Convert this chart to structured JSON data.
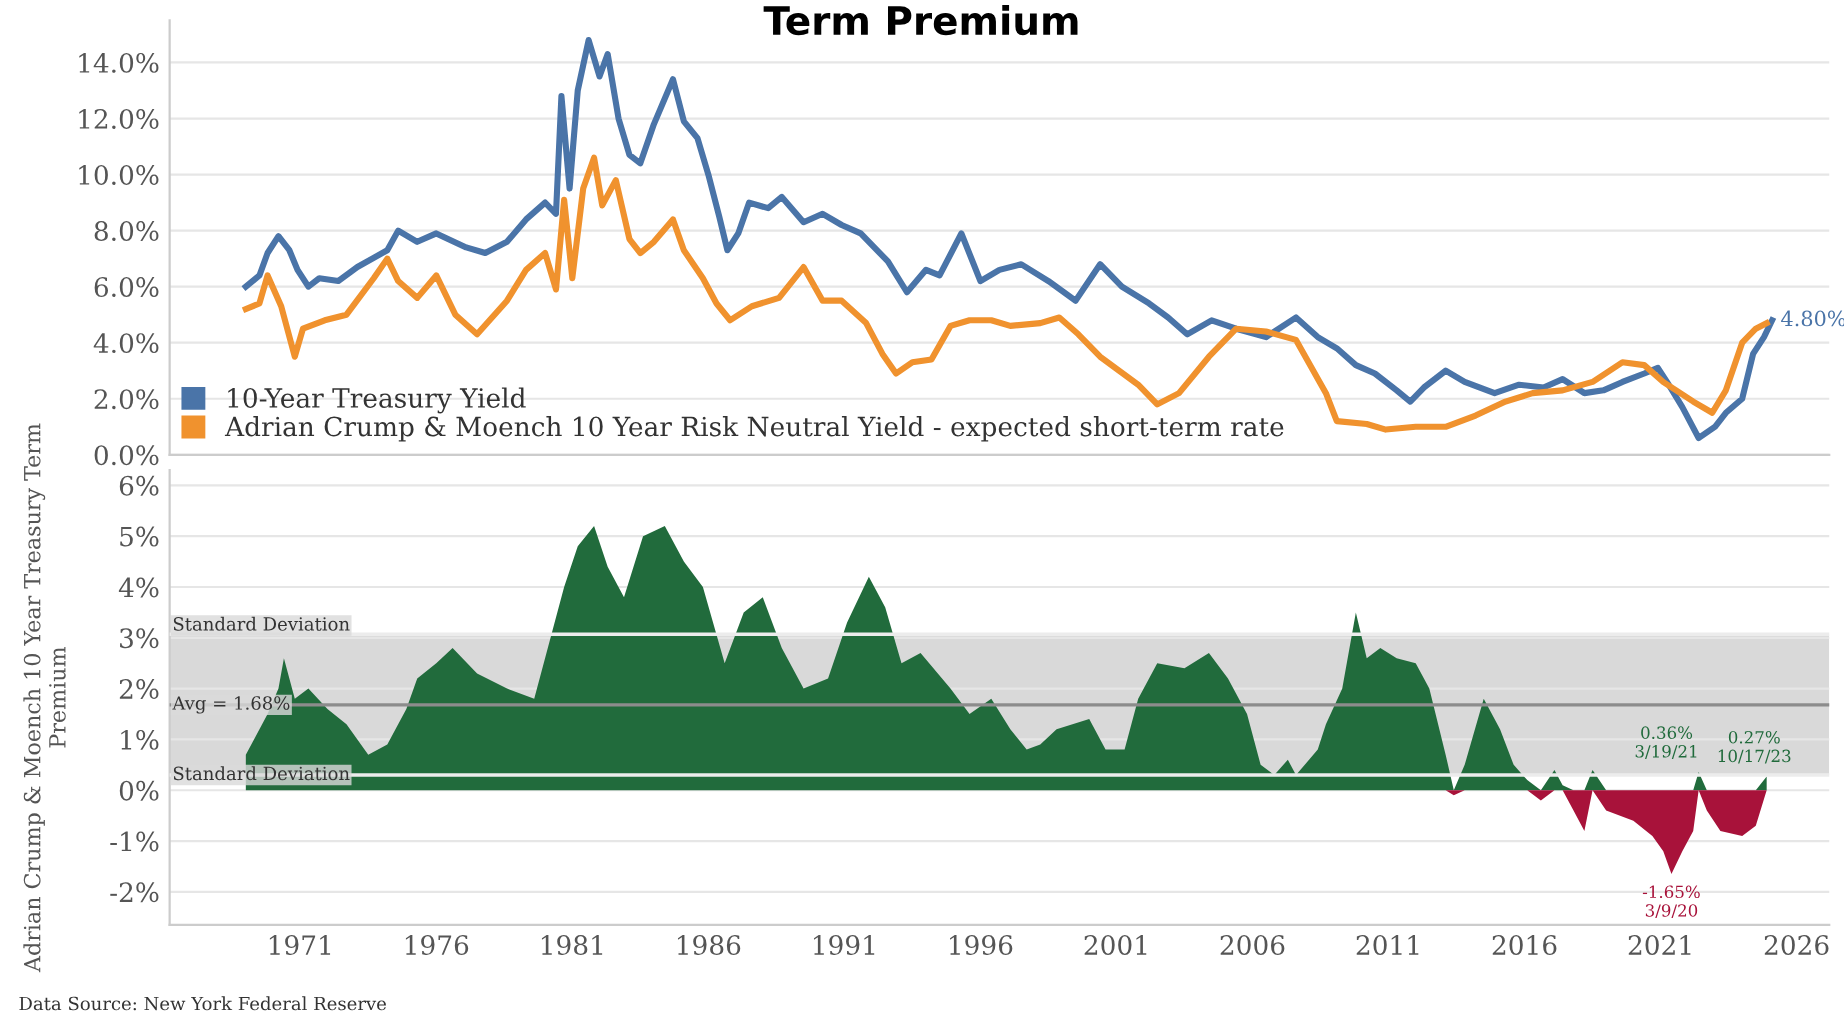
{
  "chart_data": [
    {
      "type": "line",
      "title": "Term Premium",
      "xlim": [
        1966.2,
        2027.2
      ],
      "xticks": [
        1971,
        1976,
        1981,
        1986,
        1991,
        1996,
        2001,
        2006,
        2011,
        2016,
        2021,
        2026
      ],
      "tick_labels": "y",
      "ylim": [
        0,
        15.5
      ],
      "yticks": [
        {
          "value": 0,
          "label": "0.0%"
        },
        {
          "value": 2,
          "label": "2.0%"
        },
        {
          "value": 4,
          "label": "4.0%"
        },
        {
          "value": 6,
          "label": "6.0%"
        },
        {
          "value": 8,
          "label": "8.0%"
        },
        {
          "value": 10,
          "label": "10.0%"
        },
        {
          "value": 12,
          "label": "12.0%"
        },
        {
          "value": 14,
          "label": "14.0%"
        }
      ],
      "grid": "y",
      "legend": "bottom left",
      "series": [
        {
          "name": "10-Year Treasury Yield",
          "color": "#4a74a8",
          "x": [
            1969.0,
            1969.5,
            1969.8,
            1970.2,
            1970.6,
            1970.9,
            1971.3,
            1971.7,
            1972.4,
            1973.1,
            1974.2,
            1974.6,
            1975.3,
            1976.0,
            1977.1,
            1977.8,
            1978.6,
            1979.3,
            1980.0,
            1980.4,
            1980.6,
            1980.9,
            1981.2,
            1981.6,
            1982.0,
            1982.3,
            1982.7,
            1983.1,
            1983.5,
            1984.0,
            1984.7,
            1985.1,
            1985.6,
            1986.0,
            1986.4,
            1986.7,
            1987.1,
            1987.5,
            1988.2,
            1988.7,
            1989.5,
            1990.2,
            1990.9,
            1991.6,
            1992.6,
            1993.3,
            1994.0,
            1994.5,
            1995.3,
            1996.0,
            1996.7,
            1997.5,
            1998.5,
            1999.5,
            2000.4,
            2001.2,
            2002.2,
            2002.9,
            2003.6,
            2004.5,
            2005.4,
            2006.5,
            2007.6,
            2008.4,
            2009.1,
            2009.8,
            2010.5,
            2011.3,
            2011.8,
            2012.3,
            2013.1,
            2013.8,
            2014.9,
            2015.8,
            2016.7,
            2017.4,
            2018.2,
            2018.9,
            2019.6,
            2020.4,
            2020.9,
            2021.3,
            2021.8,
            2022.4,
            2023.0,
            2023.4,
            2024.0,
            2024.4,
            2024.8,
            2025.1
          ],
          "values": [
            6.0,
            6.4,
            7.2,
            7.8,
            7.3,
            6.6,
            6.0,
            6.3,
            6.2,
            6.7,
            7.3,
            8.0,
            7.6,
            7.9,
            7.4,
            7.2,
            7.6,
            8.4,
            9.0,
            8.6,
            12.8,
            9.5,
            13.0,
            14.8,
            13.5,
            14.3,
            12.0,
            10.7,
            10.4,
            11.8,
            13.4,
            11.9,
            11.3,
            10.0,
            8.5,
            7.3,
            7.9,
            9.0,
            8.8,
            9.2,
            8.3,
            8.6,
            8.2,
            7.9,
            6.9,
            5.8,
            6.6,
            6.4,
            7.9,
            6.2,
            6.6,
            6.8,
            6.2,
            5.5,
            6.8,
            6.0,
            5.4,
            4.9,
            4.3,
            4.8,
            4.5,
            4.2,
            4.9,
            4.2,
            3.8,
            3.2,
            2.9,
            2.3,
            1.9,
            2.4,
            3.0,
            2.6,
            2.2,
            2.5,
            2.4,
            2.7,
            2.2,
            2.3,
            2.6,
            2.9,
            3.1,
            2.5,
            1.7,
            0.6,
            1.0,
            1.5,
            2.0,
            3.6,
            4.2,
            4.8
          ]
        },
        {
          "name": "Adrian Crump & Moench 10 Year Risk Neutral Yield - expected short-term rate",
          "color": "#f0922e",
          "x": [
            1969.0,
            1969.5,
            1969.8,
            1970.3,
            1970.8,
            1971.1,
            1971.9,
            1972.7,
            1973.7,
            1974.2,
            1974.6,
            1975.3,
            1976.0,
            1976.7,
            1977.5,
            1978.6,
            1979.3,
            1980.0,
            1980.4,
            1980.7,
            1981.0,
            1981.4,
            1981.8,
            1982.1,
            1982.6,
            1983.1,
            1983.5,
            1984.0,
            1984.7,
            1985.1,
            1985.8,
            1986.3,
            1986.8,
            1987.6,
            1988.6,
            1989.5,
            1990.2,
            1990.9,
            1991.8,
            1992.4,
            1992.9,
            1993.5,
            1994.2,
            1994.9,
            1995.6,
            1996.4,
            1997.1,
            1998.2,
            1998.9,
            1999.6,
            2000.4,
            2001.1,
            2001.8,
            2002.5,
            2003.3,
            2004.4,
            2005.4,
            2006.5,
            2007.6,
            2008.7,
            2009.1,
            2010.2,
            2010.9,
            2012.0,
            2013.1,
            2014.2,
            2015.3,
            2016.3,
            2017.4,
            2018.5,
            2019.6,
            2020.4,
            2021.1,
            2022.2,
            2022.9,
            2023.4,
            2024.0,
            2024.5,
            2024.9
          ],
          "values": [
            5.2,
            5.4,
            6.4,
            5.3,
            3.5,
            4.5,
            4.8,
            5.0,
            6.3,
            7.0,
            6.2,
            5.6,
            6.4,
            5.0,
            4.3,
            5.5,
            6.6,
            7.2,
            5.9,
            9.1,
            6.3,
            9.5,
            10.6,
            8.9,
            9.8,
            7.7,
            7.2,
            7.6,
            8.4,
            7.3,
            6.3,
            5.4,
            4.8,
            5.3,
            5.6,
            6.7,
            5.5,
            5.5,
            4.7,
            3.6,
            2.9,
            3.3,
            3.4,
            4.6,
            4.8,
            4.8,
            4.6,
            4.7,
            4.9,
            4.3,
            3.5,
            3.0,
            2.5,
            1.8,
            2.2,
            3.5,
            4.5,
            4.4,
            4.1,
            2.2,
            1.2,
            1.1,
            0.9,
            1.0,
            1.0,
            1.4,
            1.9,
            2.2,
            2.3,
            2.6,
            3.3,
            3.2,
            2.6,
            1.9,
            1.5,
            2.3,
            4.0,
            4.5,
            4.7
          ]
        }
      ],
      "annotations": [
        {
          "text": "4.80%",
          "x": 2025.1,
          "y": 4.8
        }
      ]
    },
    {
      "type": "area",
      "ylabel": "Adrian Crump & Moench 10 Year Treasury Term Premium",
      "xlim": [
        1966.2,
        2027.2
      ],
      "xticks": [
        1971,
        1976,
        1981,
        1986,
        1991,
        1996,
        2001,
        2006,
        2011,
        2016,
        2021,
        2026
      ],
      "ylim": [
        -2.65,
        6.3
      ],
      "yticks": [
        {
          "value": -2,
          "label": "-2%"
        },
        {
          "value": -1,
          "label": "-1%"
        },
        {
          "value": 0,
          "label": "0%"
        },
        {
          "value": 1,
          "label": "1%"
        },
        {
          "value": 2,
          "label": "2%"
        },
        {
          "value": 3,
          "label": "3%"
        },
        {
          "value": 4,
          "label": "4%"
        },
        {
          "value": 5,
          "label": "5%"
        },
        {
          "value": 6,
          "label": "6%"
        }
      ],
      "grid": "y",
      "bands": [
        {
          "axis": "y",
          "from": 0.3,
          "to": 3.07,
          "color": "#d9d9d9"
        }
      ],
      "ref_lines": [
        {
          "axis": "y",
          "value": 3.07,
          "label": "Standard Deviation",
          "color": "#ececec"
        },
        {
          "axis": "y",
          "value": 0.3,
          "label": "Standard Deviation",
          "color": "#ececec"
        },
        {
          "axis": "y",
          "value": 1.68,
          "label": "Avg = 1.68%",
          "color": "#8c8c8c"
        }
      ],
      "series": [
        {
          "color": "#216b3c",
          "x": [
            1969.0,
            1969.3,
            1969.8,
            1970.2,
            1970.4,
            1970.8,
            1971.3,
            1972.0,
            1972.7,
            1973.5,
            1974.2,
            1974.9,
            1975.3,
            1976.0,
            1976.6,
            1977.5,
            1978.6,
            1979.6,
            1980.2,
            1980.7,
            1981.2,
            1981.8,
            1982.3,
            1982.9,
            1983.6,
            1984.4,
            1985.1,
            1985.8,
            1986.6,
            1987.3,
            1988.0,
            1988.7,
            1989.5,
            1990.4,
            1991.1,
            1991.9,
            1992.5,
            1993.1,
            1993.8,
            1994.9,
            1995.6,
            1996.4,
            1997.1,
            1997.7,
            1998.2,
            1998.8,
            2000.0,
            2000.6,
            2001.3,
            2001.8,
            2002.5,
            2003.5,
            2004.4,
            2005.1,
            2005.8,
            2006.3,
            2006.8,
            2007.3,
            2007.6,
            2008.4,
            2008.7,
            2009.3,
            2009.8,
            2010.2,
            2010.7,
            2011.3,
            2012.0,
            2012.5,
            2013.1,
            2013.4,
            2013.8,
            2014.5,
            2015.1,
            2015.6,
            2016.1,
            2016.6,
            2017.1,
            2017.4,
            2017.8,
            2018.2,
            2018.5,
            2019.0,
            2020.0,
            2020.7,
            2021.1,
            2021.4,
            2021.8,
            2022.2,
            2022.4,
            2022.7,
            2023.2,
            2024.0,
            2024.5,
            2024.9
          ],
          "values": [
            0.7,
            1.0,
            1.5,
            2.0,
            2.6,
            1.8,
            2.0,
            1.6,
            1.3,
            0.7,
            0.9,
            1.6,
            2.2,
            2.5,
            2.8,
            2.3,
            2.0,
            1.8,
            3.0,
            4.0,
            4.8,
            5.2,
            4.4,
            3.8,
            5.0,
            5.2,
            4.5,
            4.0,
            2.5,
            3.5,
            3.8,
            2.8,
            2.0,
            2.2,
            3.3,
            4.2,
            3.6,
            2.5,
            2.7,
            2.0,
            1.5,
            1.8,
            1.2,
            0.8,
            0.9,
            1.2,
            1.4,
            0.8,
            0.8,
            1.8,
            2.5,
            2.4,
            2.7,
            2.2,
            1.5,
            0.5,
            0.3,
            0.6,
            0.3,
            0.8,
            1.3,
            2.0,
            3.5,
            2.6,
            2.8,
            2.6,
            2.5,
            2.0,
            0.7,
            0,
            0.5,
            1.8,
            1.2,
            0.5,
            0.2,
            0,
            0.4,
            0.1,
            0,
            0,
            0.4,
            0,
            0,
            0,
            0,
            0,
            0,
            0,
            0.36,
            0,
            0,
            0,
            0,
            0.27
          ]
        },
        {
          "color": "#a8123a",
          "x": [
            2013.1,
            2013.4,
            2013.8,
            2016.1,
            2016.6,
            2017.1,
            2017.4,
            2017.8,
            2018.2,
            2018.5,
            2019.0,
            2020.0,
            2020.7,
            2021.1,
            2021.4,
            2021.8,
            2022.2,
            2022.4,
            2022.7,
            2023.2,
            2024.0,
            2024.5,
            2024.9
          ],
          "values": [
            0,
            -0.1,
            0,
            0,
            -0.2,
            0,
            0,
            -0.4,
            -0.8,
            0,
            -0.4,
            -0.6,
            -0.9,
            -1.2,
            -1.65,
            -1.2,
            -0.8,
            0,
            -0.4,
            -0.8,
            -0.9,
            -0.7,
            0
          ]
        }
      ],
      "annotations": [
        {
          "text": "0.36%\n3/19/21",
          "x": 2022.4,
          "y": 0.36
        },
        {
          "text": "-1.65%\n3/9/20",
          "x": 2021.4,
          "y": -1.65
        },
        {
          "text": "0.27%\n10/17/23",
          "x": 2024.9,
          "y": 0.27
        },
        "Data Source: New York Federal Reserve"
      ]
    }
  ]
}
